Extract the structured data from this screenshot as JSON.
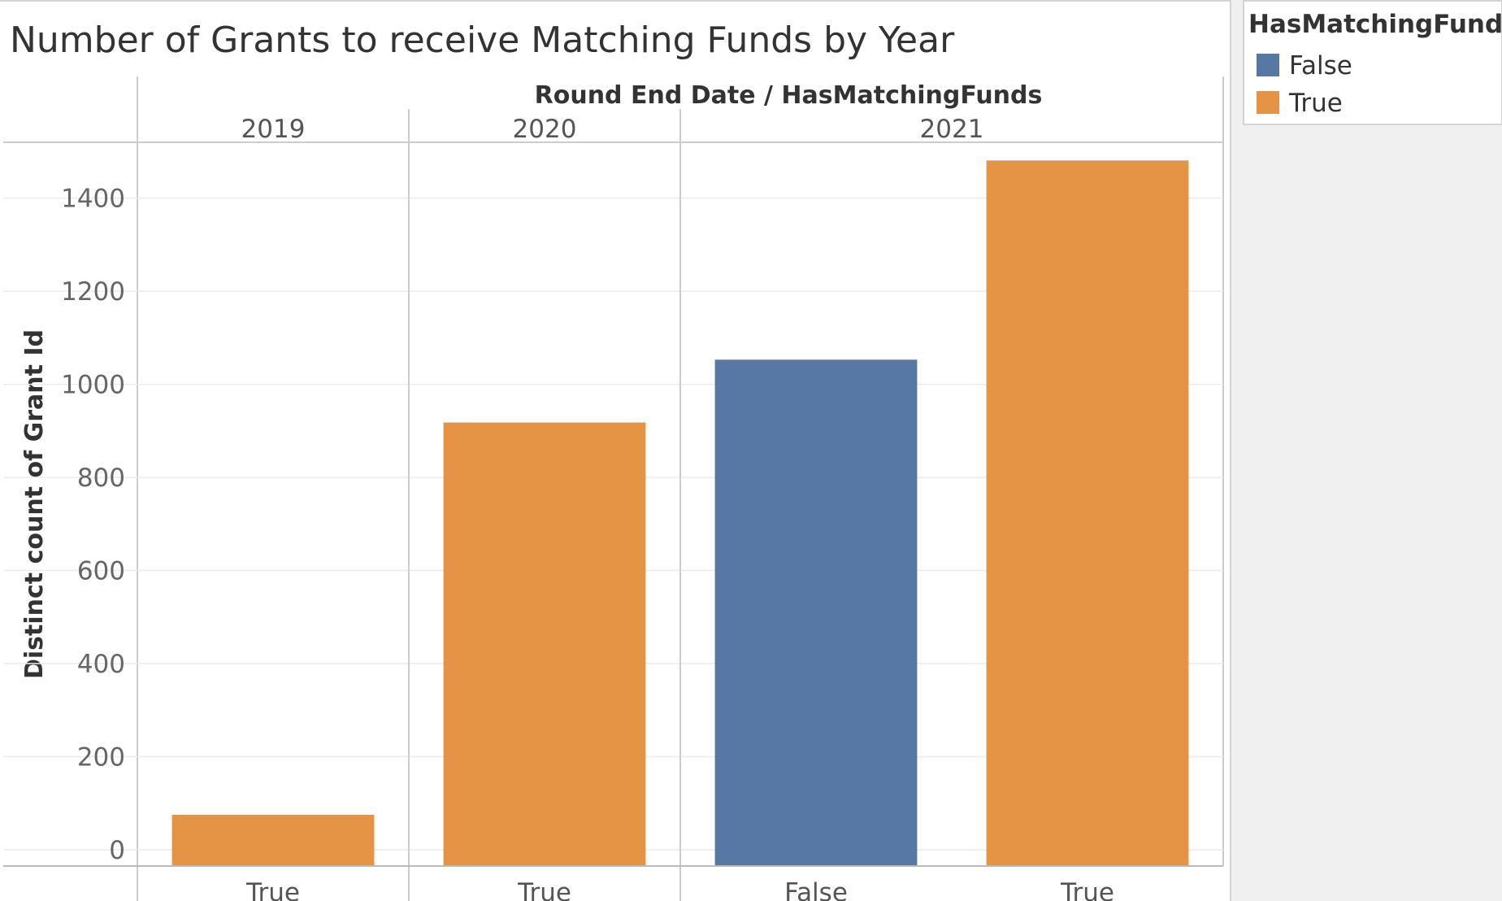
{
  "chart_data": {
    "type": "bar",
    "title": "Number of Grants to receive Matching Funds by Year",
    "column_header_title": "Round End Date / HasMatchingFunds",
    "ylabel": "Distinct count of Grant Id",
    "ylim": [
      -35,
      1520
    ],
    "yticks": [
      0,
      200,
      400,
      600,
      800,
      1000,
      1200,
      1400
    ],
    "grid": true,
    "groups": [
      {
        "label": "2019",
        "bars": [
          {
            "category": "True",
            "value": 75
          }
        ]
      },
      {
        "label": "2020",
        "bars": [
          {
            "category": "True",
            "value": 918
          }
        ]
      },
      {
        "label": "2021",
        "bars": [
          {
            "category": "False",
            "value": 1053
          },
          {
            "category": "True",
            "value": 1481
          }
        ]
      }
    ],
    "legend": {
      "title": "HasMatchingFunds",
      "position": "right",
      "items": [
        {
          "label": "False",
          "color": "#5778a4"
        },
        {
          "label": "True",
          "color": "#e49444"
        }
      ]
    }
  }
}
